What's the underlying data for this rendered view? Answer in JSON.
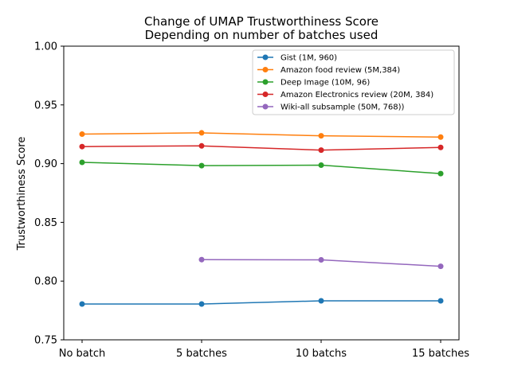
{
  "chart_data": {
    "type": "line",
    "title": "Change of UMAP Trustworthiness Score",
    "subtitle": "Depending on number of batches used",
    "xlabel": "",
    "ylabel": "Trustworthiness Score",
    "categories": [
      "No batch",
      "5 batches",
      "10 batchs",
      "15 batches"
    ],
    "ylim": [
      0.75,
      1.0
    ],
    "yticks": [
      "0.75",
      "0.80",
      "0.85",
      "0.90",
      "0.95",
      "1.00"
    ],
    "grid": false,
    "legend_position": "top-right",
    "series": [
      {
        "name": "Gist (1M, 960)",
        "color": "#1f77b4",
        "values": [
          0.7805,
          0.7805,
          0.7832,
          0.7832
        ]
      },
      {
        "name": "Amazon food review (5M,384)",
        "color": "#ff7f0e",
        "values": [
          0.9251,
          0.9262,
          0.9237,
          0.9226
        ]
      },
      {
        "name": "Deep Image (10M, 96)",
        "color": "#2ca02c",
        "values": [
          0.9011,
          0.8983,
          0.8987,
          0.8915
        ]
      },
      {
        "name": "Amazon Electronics review (20M, 384)",
        "color": "#d62728",
        "values": [
          0.9145,
          0.9151,
          0.9115,
          0.9138
        ]
      },
      {
        "name": "Wiki-all subsample (50M, 768))",
        "color": "#9467bd",
        "values": [
          null,
          0.8183,
          0.8181,
          0.8126
        ]
      }
    ]
  }
}
